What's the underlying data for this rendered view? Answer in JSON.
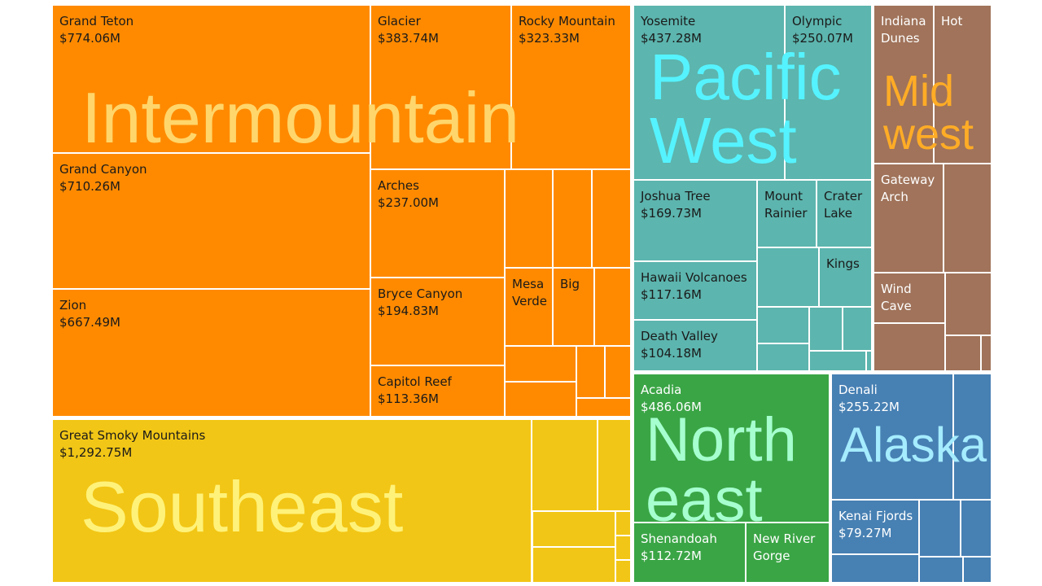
{
  "chart_data": {
    "type": "treemap",
    "measure_format": "currency_millions",
    "regions": [
      {
        "name": "Intermountain",
        "color": "#ff8a00",
        "label_color": "#ffd66b",
        "parks": [
          {
            "name": "Grand Teton",
            "label_lines": [
              "Grand Teton"
            ],
            "value": 774.06,
            "value_label": "$774.06M"
          },
          {
            "name": "Grand Canyon",
            "label_lines": [
              "Grand Canyon"
            ],
            "value": 710.26,
            "value_label": "$710.26M"
          },
          {
            "name": "Zion",
            "label_lines": [
              "Zion"
            ],
            "value": 667.49,
            "value_label": "$667.49M"
          },
          {
            "name": "Glacier",
            "label_lines": [
              "Glacier"
            ],
            "value": 383.74,
            "value_label": "$383.74M"
          },
          {
            "name": "Rocky Mountain",
            "label_lines": [
              "Rocky Mountain"
            ],
            "value": 323.33,
            "value_label": "$323.33M"
          },
          {
            "name": "Arches",
            "label_lines": [
              "Arches"
            ],
            "value": 237.0,
            "value_label": "$237.00M"
          },
          {
            "name": "Bryce Canyon",
            "label_lines": [
              "Bryce Canyon"
            ],
            "value": 194.83,
            "value_label": "$194.83M"
          },
          {
            "name": "Capitol Reef",
            "label_lines": [
              "Capitol Reef"
            ],
            "value": 113.36,
            "value_label": "$113.36M"
          },
          {
            "name": "Mesa Verde",
            "label_lines": [
              "Mesa",
              "Verde"
            ],
            "value": 62,
            "value_label": ""
          },
          {
            "name": "Big",
            "label_lines": [
              "Big"
            ],
            "value": 50,
            "value_label": ""
          },
          {
            "name": "",
            "label_lines": [],
            "value": 60,
            "value_label": ""
          },
          {
            "name": "",
            "label_lines": [],
            "value": 48,
            "value_label": ""
          },
          {
            "name": "",
            "label_lines": [],
            "value": 40,
            "value_label": ""
          },
          {
            "name": "",
            "label_lines": [],
            "value": 38,
            "value_label": ""
          },
          {
            "name": "",
            "label_lines": [],
            "value": 36,
            "value_label": ""
          },
          {
            "name": "",
            "label_lines": [],
            "value": 30,
            "value_label": ""
          },
          {
            "name": "",
            "label_lines": [],
            "value": 18,
            "value_label": ""
          },
          {
            "name": "",
            "label_lines": [],
            "value": 17,
            "value_label": ""
          },
          {
            "name": "",
            "label_lines": [],
            "value": 11,
            "value_label": ""
          }
        ]
      },
      {
        "name": "Southeast",
        "color": "#f2c616",
        "label_color": "#fff27a",
        "parks": [
          {
            "name": "Great Smoky Mountains",
            "label_lines": [
              "Great Smoky Mountains"
            ],
            "value": 1292.75,
            "value_label": "$1,292.75M"
          },
          {
            "name": "",
            "label_lines": [],
            "value": 62,
            "value_label": ""
          },
          {
            "name": "",
            "label_lines": [],
            "value": 35,
            "value_label": ""
          },
          {
            "name": "",
            "label_lines": [],
            "value": 33,
            "value_label": ""
          },
          {
            "name": "",
            "label_lines": [],
            "value": 32,
            "value_label": ""
          },
          {
            "name": "",
            "label_lines": [],
            "value": 15,
            "value_label": ""
          },
          {
            "name": "",
            "label_lines": [],
            "value": 13,
            "value_label": ""
          },
          {
            "name": "",
            "label_lines": [],
            "value": 10,
            "value_label": ""
          },
          {
            "name": "",
            "label_lines": [],
            "value": 8,
            "value_label": ""
          }
        ]
      },
      {
        "name": "Pacific West",
        "color": "#5cb5ae",
        "label_color": "#55f3ff",
        "parks": [
          {
            "name": "Yosemite",
            "label_lines": [
              "Yosemite"
            ],
            "value": 437.28,
            "value_label": "$437.28M"
          },
          {
            "name": "Olympic",
            "label_lines": [
              "Olympic"
            ],
            "value": 250.07,
            "value_label": "$250.07M"
          },
          {
            "name": "Joshua Tree",
            "label_lines": [
              "Joshua Tree"
            ],
            "value": 169.73,
            "value_label": "$169.73M"
          },
          {
            "name": "Mount Rainier",
            "label_lines": [
              "Mount",
              "Rainier"
            ],
            "value": 62,
            "value_label": ""
          },
          {
            "name": "Crater Lake",
            "label_lines": [
              "Crater",
              "Lake"
            ],
            "value": 53,
            "value_label": ""
          },
          {
            "name": "Hawaii Volcanoes",
            "label_lines": [
              "Hawaii Volcanoes"
            ],
            "value": 117.16,
            "value_label": "$117.16M"
          },
          {
            "name": "Kings",
            "label_lines": [
              "Kings"
            ],
            "value": 42,
            "value_label": ""
          },
          {
            "name": "Death Valley",
            "label_lines": [
              "Death Valley"
            ],
            "value": 104.18,
            "value_label": "$104.18M"
          },
          {
            "name": "",
            "label_lines": [],
            "value": 52,
            "value_label": ""
          },
          {
            "name": "",
            "label_lines": [],
            "value": 23,
            "value_label": ""
          },
          {
            "name": "",
            "label_lines": [],
            "value": 22,
            "value_label": ""
          },
          {
            "name": "",
            "label_lines": [],
            "value": 21,
            "value_label": ""
          },
          {
            "name": "",
            "label_lines": [],
            "value": 11,
            "value_label": ""
          },
          {
            "name": "",
            "label_lines": [],
            "value": 10,
            "value_label": ""
          },
          {
            "name": "",
            "label_lines": [],
            "value": 2,
            "value_label": ""
          }
        ]
      },
      {
        "name": "Midwest",
        "color": "#a0735a",
        "label_color": "#ffac26",
        "parks": [
          {
            "name": "Indiana Dunes",
            "label_lines": [
              "Indiana",
              "Dunes"
            ],
            "value": 70,
            "value_label": ""
          },
          {
            "name": "Hot",
            "label_lines": [
              "Hot"
            ],
            "value": 68,
            "value_label": ""
          },
          {
            "name": "Gateway Arch",
            "label_lines": [
              "Gateway",
              "Arch"
            ],
            "value": 60,
            "value_label": ""
          },
          {
            "name": "",
            "label_lines": [],
            "value": 40,
            "value_label": ""
          },
          {
            "name": "Wind Cave",
            "label_lines": [
              "Wind",
              "Cave"
            ],
            "value": 45,
            "value_label": ""
          },
          {
            "name": "",
            "label_lines": [],
            "value": 37,
            "value_label": ""
          },
          {
            "name": "",
            "label_lines": [],
            "value": 25,
            "value_label": ""
          },
          {
            "name": "",
            "label_lines": [],
            "value": 13,
            "value_label": ""
          },
          {
            "name": "",
            "label_lines": [],
            "value": 4,
            "value_label": ""
          }
        ]
      },
      {
        "name": "Northeast",
        "color": "#3aa545",
        "label_color": "#a6ffcf",
        "parks": [
          {
            "name": "Acadia",
            "label_lines": [
              "Acadia"
            ],
            "value": 486.06,
            "value_label": "$486.06M"
          },
          {
            "name": "Shenandoah",
            "label_lines": [
              "Shenandoah"
            ],
            "value": 112.72,
            "value_label": "$112.72M"
          },
          {
            "name": "New River Gorge",
            "label_lines": [
              "New River",
              "Gorge"
            ],
            "value": 80,
            "value_label": ""
          }
        ]
      },
      {
        "name": "Alaska",
        "color": "#4780b3",
        "label_color": "#a5ecff",
        "parks": [
          {
            "name": "Denali",
            "label_lines": [
              "Denali"
            ],
            "value": 255.22,
            "value_label": "$255.22M"
          },
          {
            "name": "",
            "label_lines": [],
            "value": 76,
            "value_label": ""
          },
          {
            "name": "Kenai Fjords",
            "label_lines": [
              "Kenai Fjords"
            ],
            "value": 79.27,
            "value_label": "$79.27M"
          },
          {
            "name": "",
            "label_lines": [],
            "value": 30,
            "value_label": ""
          },
          {
            "name": "",
            "label_lines": [],
            "value": 22,
            "value_label": ""
          },
          {
            "name": "",
            "label_lines": [],
            "value": 14,
            "value_label": ""
          },
          {
            "name": "",
            "label_lines": [],
            "value": 12,
            "value_label": ""
          },
          {
            "name": "",
            "label_lines": [],
            "value": 8,
            "value_label": ""
          }
        ]
      }
    ]
  }
}
